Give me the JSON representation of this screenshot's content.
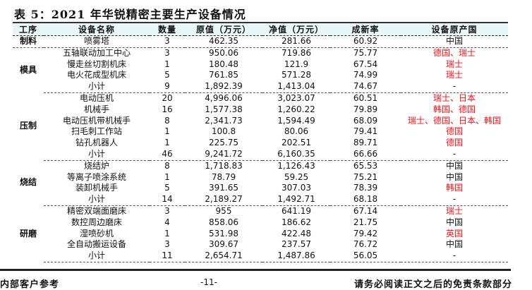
{
  "title": "表 5：2021 年华锐精密主要生产设备情况",
  "headers": [
    "工序",
    "设备名称",
    "数量",
    "原值（万元）",
    "净值（万元）",
    "成新率",
    "设备原产国"
  ],
  "groups": [
    {
      "stage": "制料",
      "rows": [
        {
          "name": "喷雾塔",
          "qty": "3",
          "orig": "462.35",
          "net": "281.66",
          "rate": "60.92",
          "country": "中国",
          "foreign": false
        }
      ]
    },
    {
      "stage": "模具",
      "rows": [
        {
          "name": "五轴联动加工中心",
          "qty": "3",
          "orig": "950.06",
          "net": "719.86",
          "rate": "75.77",
          "country": "德国、瑞士",
          "foreign": true
        },
        {
          "name": "慢走丝切割机床",
          "qty": "1",
          "orig": "180.48",
          "net": "121.9",
          "rate": "67.54",
          "country": "瑞士",
          "foreign": true
        },
        {
          "name": "电火花成型机床",
          "qty": "5",
          "orig": "761.85",
          "net": "571.28",
          "rate": "74.99",
          "country": "瑞士",
          "foreign": true
        },
        {
          "name": "小计",
          "qty": "9",
          "orig": "1,892.39",
          "net": "1,413.04",
          "rate": "74.67",
          "country": "-",
          "foreign": false
        }
      ]
    },
    {
      "stage": "压制",
      "rows": [
        {
          "name": "电动压机",
          "qty": "20",
          "orig": "4,996.06",
          "net": "3,023.07",
          "rate": "60.51",
          "country": "瑞士、日本",
          "foreign": true
        },
        {
          "name": "机械手",
          "qty": "16",
          "orig": "1,577.38",
          "net": "1,260.22",
          "rate": "79.89",
          "country": "韩国、德国",
          "foreign": true
        },
        {
          "name": "电动压机带机械手",
          "qty": "8",
          "orig": "2,341.73",
          "net": "1,594.49",
          "rate": "68.09",
          "country": "瑞士、德国、日本、韩国",
          "foreign": true
        },
        {
          "name": "扫毛刺工作站",
          "qty": "1",
          "orig": "100.8",
          "net": "80.06",
          "rate": "79.41",
          "country": "德国",
          "foreign": true
        },
        {
          "name": "钻孔机器人",
          "qty": "1",
          "orig": "225.75",
          "net": "202.51",
          "rate": "89.71",
          "country": "德国",
          "foreign": true
        },
        {
          "name": "小计",
          "qty": "46",
          "orig": "9,241.72",
          "net": "6,160.35",
          "rate": "66.66",
          "country": "-",
          "foreign": false
        }
      ]
    },
    {
      "stage": "烧结",
      "rows": [
        {
          "name": "烧结炉",
          "qty": "8",
          "orig": "1,718.83",
          "net": "1,126.43",
          "rate": "65.53",
          "country": "中国",
          "foreign": false
        },
        {
          "name": "等离子喷涂系统",
          "qty": "1",
          "orig": "78.79",
          "net": "59.25",
          "rate": "75.21",
          "country": "中国",
          "foreign": false
        },
        {
          "name": "装卸机械手",
          "qty": "5",
          "orig": "391.65",
          "net": "307.03",
          "rate": "78.39",
          "country": "韩国",
          "foreign": true
        },
        {
          "name": "小计",
          "qty": "14",
          "orig": "2,189.27",
          "net": "1,492.71",
          "rate": "68.18",
          "country": "-",
          "foreign": false
        }
      ]
    },
    {
      "stage": "研磨",
      "rows": [
        {
          "name": "精密双端面磨床",
          "qty": "3",
          "orig": "955",
          "net": "641.19",
          "rate": "67.14",
          "country": "瑞士",
          "foreign": true
        },
        {
          "name": "数控周边磨床",
          "qty": "4",
          "orig": "858.06",
          "net": "186.62",
          "rate": "21.75",
          "country": "中国",
          "foreign": false
        },
        {
          "name": "湿喷砂机",
          "qty": "1",
          "orig": "531.98",
          "net": "422.48",
          "rate": "79.42",
          "country": "英国",
          "foreign": true
        },
        {
          "name": "全自动搬运设备",
          "qty": "3",
          "orig": "309.67",
          "net": "237.57",
          "rate": "76.72",
          "country": "中国",
          "foreign": false
        },
        {
          "name": "小计",
          "qty": "11",
          "orig": "2,654.71",
          "net": "1,487.86",
          "rate": "56.05",
          "country": "-",
          "foreign": false
        }
      ]
    }
  ],
  "footer": {
    "left": "内部客户参考",
    "page": "-11-",
    "right": "请务必阅读正文之后的免责条款部分"
  },
  "colors": {
    "foreign_country": "#e8141b",
    "header_bg": "#e8f6f8"
  }
}
